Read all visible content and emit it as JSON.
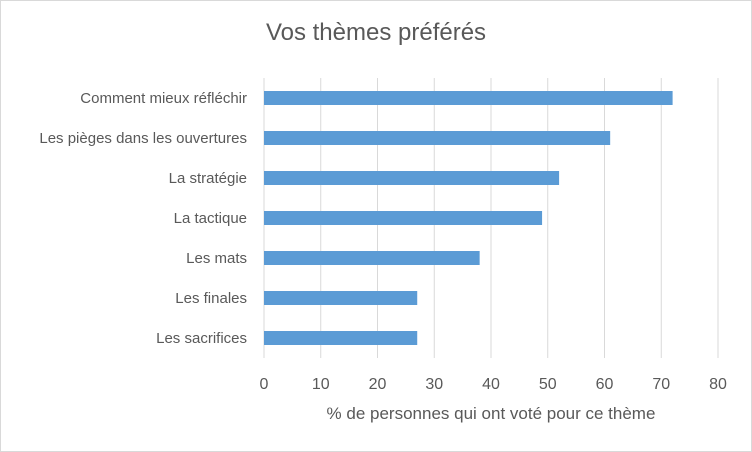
{
  "chart_data": {
    "type": "bar",
    "orientation": "horizontal",
    "title": "Vos thèmes préférés",
    "xlabel": "% de personnes qui ont voté pour ce thème",
    "ylabel": "",
    "categories": [
      "Comment mieux réfléchir",
      "Les pièges dans les ouvertures",
      "La stratégie",
      "La tactique",
      "Les mats",
      "Les finales",
      "Les sacrifices"
    ],
    "values": [
      72,
      61,
      52,
      49,
      38,
      27,
      27
    ],
    "xlim": [
      0,
      80
    ],
    "xticks": [
      "0",
      "10",
      "20",
      "30",
      "40",
      "50",
      "60",
      "70",
      "80"
    ],
    "grid": true,
    "bar_color": "#5b9bd5",
    "grid_color": "#d9d9d9"
  }
}
